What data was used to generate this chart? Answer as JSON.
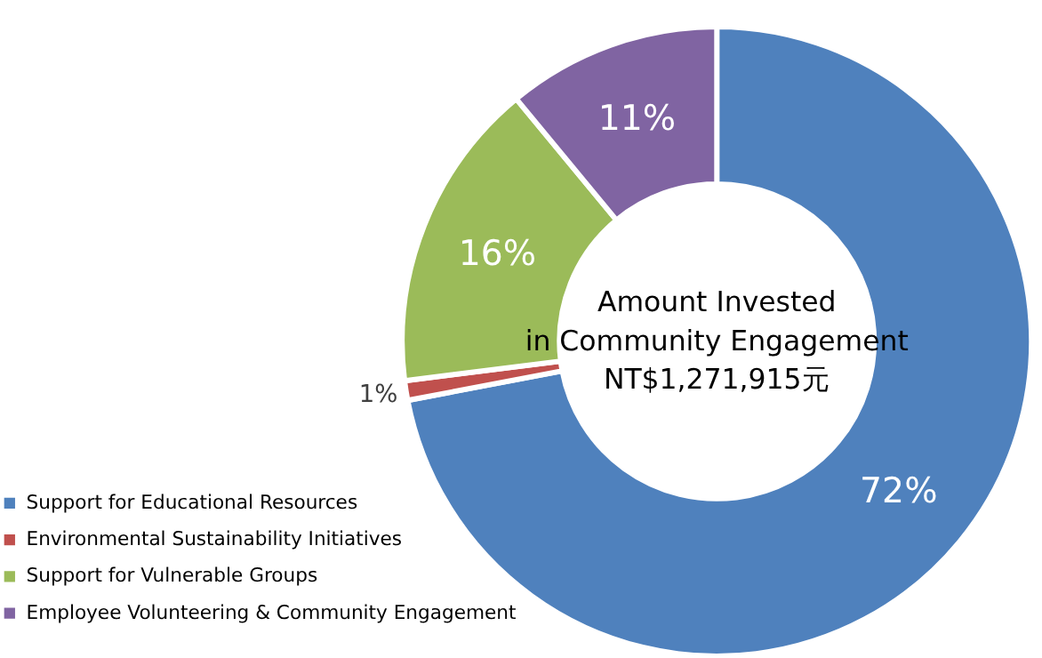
{
  "chart_data": {
    "type": "donut",
    "categories": [
      "Support for Educational Resources",
      "Environmental Sustainability Initiatives",
      "Support for Vulnerable Groups",
      "Employee Volunteering & Community Engagement"
    ],
    "values": [
      72,
      1,
      16,
      11
    ],
    "colors": [
      "#4f81bd",
      "#c0504d",
      "#9bbb59",
      "#8064a2"
    ],
    "value_labels": [
      "72%",
      "1%",
      "16%",
      "11%"
    ],
    "annotations": [
      "Amount Invested",
      "in Community Engagement",
      "NT$1,271,915元"
    ],
    "legend": "bottom left"
  }
}
